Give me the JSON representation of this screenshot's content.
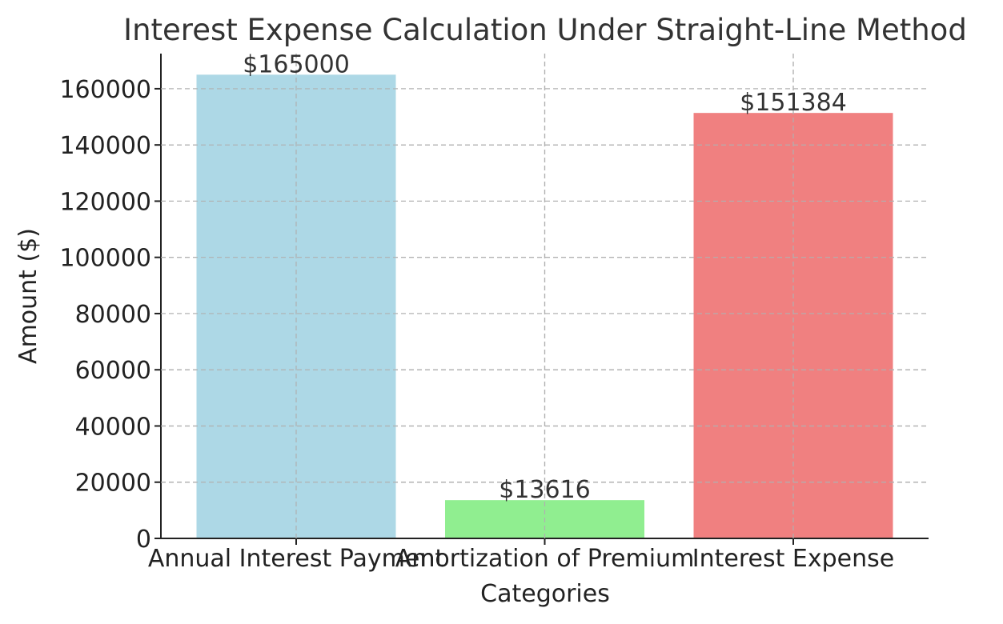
{
  "chart_data": {
    "type": "bar",
    "title": "Interest Expense Calculation Under Straight-Line Method",
    "xlabel": "Categories",
    "ylabel": "Amount ($)",
    "categories": [
      "Annual Interest Payment",
      "Amortization of Premium",
      "Interest Expense"
    ],
    "values": [
      165000,
      13616,
      151384
    ],
    "data_labels": [
      "$165000",
      "$13616",
      "$151384"
    ],
    "colors": [
      "#add8e6",
      "#90ee90",
      "#f08080"
    ],
    "ylim": [
      0,
      172500
    ],
    "yticks": [
      0,
      20000,
      40000,
      60000,
      80000,
      100000,
      120000,
      140000,
      160000
    ],
    "ytick_labels": [
      "0",
      "20000",
      "40000",
      "60000",
      "80000",
      "100000",
      "120000",
      "140000",
      "160000"
    ],
    "grid": true,
    "legend": null
  }
}
